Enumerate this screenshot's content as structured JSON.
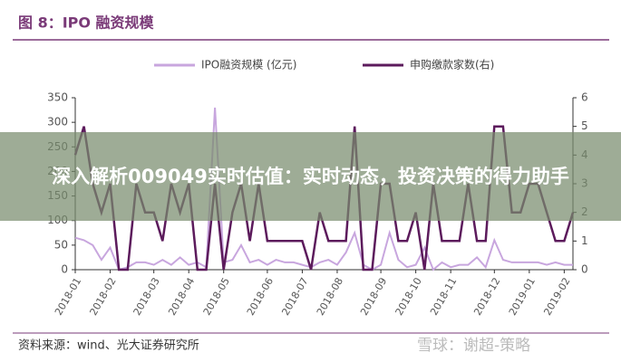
{
  "chart_data": {
    "type": "line",
    "title": "图 8：IPO 融资规模",
    "categories": [
      "2018-01",
      null,
      null,
      null,
      "2018-02",
      null,
      null,
      null,
      null,
      "2018-03",
      null,
      null,
      null,
      "2018-04",
      null,
      null,
      null,
      "2018-05",
      null,
      null,
      null,
      null,
      "2018-06",
      null,
      null,
      null,
      "2018-07",
      null,
      null,
      null,
      "2018-08",
      null,
      null,
      null,
      null,
      "2018-09",
      null,
      null,
      null,
      "2018-10",
      null,
      null,
      null,
      "2018-11",
      null,
      null,
      null,
      null,
      "2018-12",
      null,
      null,
      null,
      "2019-01",
      null,
      null,
      null,
      "2019-02",
      null
    ],
    "series": [
      {
        "name": "IPO融资规模 (亿元)",
        "color": "#c8a6de",
        "values": [
          65,
          60,
          50,
          20,
          45,
          0,
          5,
          15,
          15,
          10,
          20,
          10,
          25,
          10,
          15,
          5,
          330,
          15,
          20,
          50,
          15,
          20,
          10,
          20,
          15,
          15,
          10,
          5,
          15,
          20,
          10,
          35,
          75,
          10,
          0,
          10,
          75,
          20,
          5,
          10,
          45,
          0,
          15,
          5,
          10,
          10,
          25,
          5,
          60,
          20,
          15,
          15,
          15,
          15,
          10,
          15,
          10,
          10
        ]
      },
      {
        "name": "申购缴款家数(右)",
        "color": "#5c1b5c",
        "axis": "y2",
        "values": [
          4,
          5,
          3,
          2,
          3,
          0,
          0,
          3,
          2,
          2,
          1,
          3,
          2,
          3,
          0,
          0,
          3,
          0,
          2,
          3,
          1,
          3,
          1,
          1,
          1,
          1,
          1,
          0,
          2,
          1,
          1,
          1,
          5,
          0,
          0,
          3,
          3,
          1,
          1,
          2,
          0,
          3,
          1,
          1,
          1,
          3,
          1,
          1,
          5,
          5,
          2,
          2,
          3,
          3,
          2,
          1,
          1,
          2
        ]
      }
    ],
    "ylim": [
      0,
      350
    ],
    "yticks": [
      0,
      50,
      100,
      150,
      200,
      250,
      300,
      350
    ],
    "y2lim": [
      0,
      6
    ],
    "y2ticks": [
      0,
      1,
      2,
      3,
      4,
      5,
      6
    ]
  },
  "source": "资料来源：wind、光大证券研究所",
  "banner": "深入解析009049实时估值：实时动态，投资决策的得力助手",
  "watermark": "雪球：谢超-策略"
}
